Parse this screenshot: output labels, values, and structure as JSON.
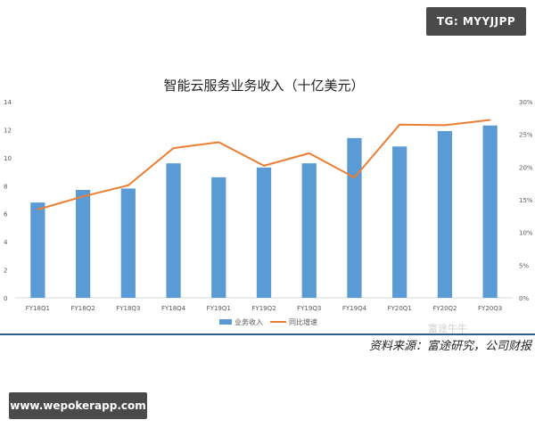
{
  "badge": {
    "text": "TG: MYYJJPP"
  },
  "footer": {
    "source": "资料来源：富途研究，公司财报",
    "url": "www.wepokerapp.com",
    "watermark": "富途牛牛"
  },
  "colors": {
    "bar": "#5b9bd5",
    "line": "#ed7d31",
    "axis": "#d9d9d9",
    "text": "#595959"
  },
  "chart_data": {
    "type": "bar",
    "title": "智能云服务业务收入（十亿美元）",
    "categories": [
      "FY18Q1",
      "FY18Q2",
      "FY18Q3",
      "FY18Q4",
      "FY19Q1",
      "FY19Q2",
      "FY19Q3",
      "FY19Q4",
      "FY20Q1",
      "FY20Q2",
      "FY20Q3"
    ],
    "series": [
      {
        "name": "业务收入",
        "type": "bar",
        "axis": "left",
        "values": [
          6.8,
          7.7,
          7.8,
          9.6,
          8.6,
          9.3,
          9.6,
          11.4,
          10.8,
          11.9,
          12.3
        ]
      },
      {
        "name": "同比增速",
        "type": "line",
        "axis": "right",
        "values": [
          13.5,
          15.5,
          17.2,
          22.9,
          23.8,
          20.2,
          22.1,
          18.4,
          26.5,
          26.4,
          27.2
        ]
      }
    ],
    "ylim_left": [
      0,
      14
    ],
    "yticks_left": [
      "0",
      "2",
      "4",
      "6",
      "8",
      "10",
      "12",
      "14"
    ],
    "ylim_right": [
      0,
      30
    ],
    "yticks_right": [
      "0%",
      "5%",
      "10%",
      "15%",
      "20%",
      "25%",
      "30%"
    ],
    "legend_position": "bottom",
    "grid": false
  }
}
